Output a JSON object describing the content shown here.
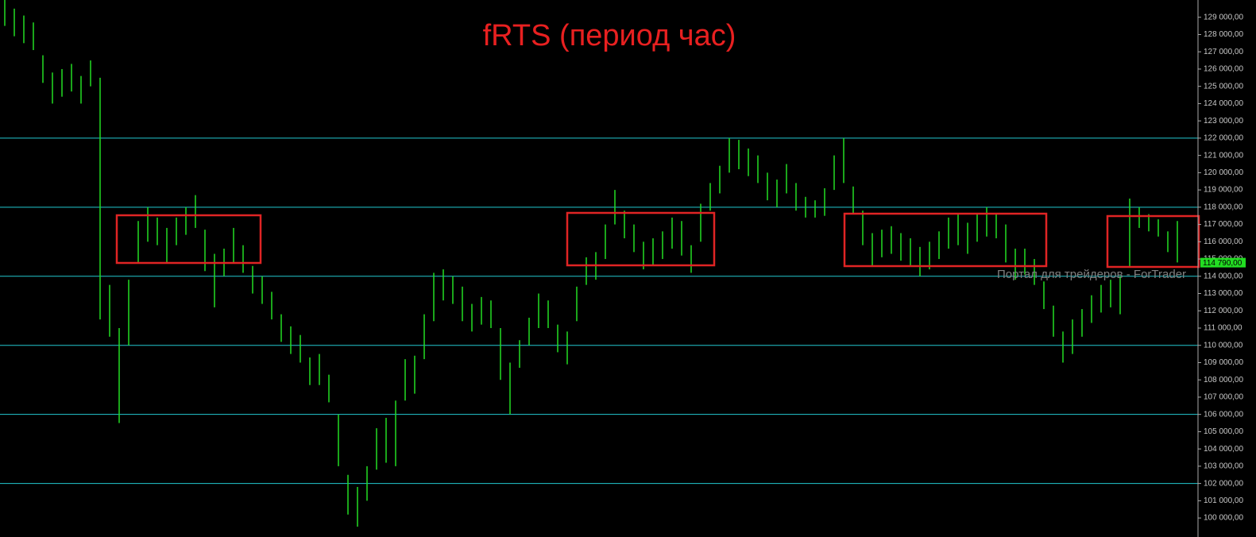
{
  "chart_data": {
    "type": "ohlc",
    "title": "fRTS (период час)",
    "watermark": "Портал для трейдеров - ForTrader",
    "color": "#22dd22",
    "level_color": "#22c8d0",
    "box_color": "#e02424",
    "ylim": [
      98900,
      130000
    ],
    "yticks": [
      {
        "value": 100000,
        "label": "100 000,00"
      },
      {
        "value": 101000,
        "label": "101 000,00"
      },
      {
        "value": 102000,
        "label": "102 000,00"
      },
      {
        "value": 103000,
        "label": "103 000,00"
      },
      {
        "value": 104000,
        "label": "104 000,00"
      },
      {
        "value": 105000,
        "label": "105 000,00"
      },
      {
        "value": 106000,
        "label": "106 000,00"
      },
      {
        "value": 107000,
        "label": "107 000,00"
      },
      {
        "value": 108000,
        "label": "108 000,00"
      },
      {
        "value": 109000,
        "label": "109 000,00"
      },
      {
        "value": 110000,
        "label": "110 000,00"
      },
      {
        "value": 111000,
        "label": "111 000,00"
      },
      {
        "value": 112000,
        "label": "112 000,00"
      },
      {
        "value": 113000,
        "label": "113 000,00"
      },
      {
        "value": 114000,
        "label": "114 000,00"
      },
      {
        "value": 115000,
        "label": "115 000,00"
      },
      {
        "value": 116000,
        "label": "116 000,00"
      },
      {
        "value": 117000,
        "label": "117 000,00"
      },
      {
        "value": 118000,
        "label": "118 000,00"
      },
      {
        "value": 119000,
        "label": "119 000,00"
      },
      {
        "value": 120000,
        "label": "120 000,00"
      },
      {
        "value": 121000,
        "label": "121 000,00"
      },
      {
        "value": 122000,
        "label": "122 000,00"
      },
      {
        "value": 123000,
        "label": "123 000,00"
      },
      {
        "value": 124000,
        "label": "124 000,00"
      },
      {
        "value": 125000,
        "label": "125 000,00"
      },
      {
        "value": 126000,
        "label": "126 000,00"
      },
      {
        "value": 127000,
        "label": "127 000,00"
      },
      {
        "value": 128000,
        "label": "128 000,00"
      },
      {
        "value": 129000,
        "label": "129 000,00"
      }
    ],
    "levels": [
      102000,
      106000,
      110000,
      114000,
      118000,
      122000
    ],
    "last_price": {
      "value": 114790,
      "label": "114 790,00"
    },
    "highs": [
      130000,
      129500,
      129100,
      128700,
      126800,
      125800,
      126000,
      126300,
      125600,
      126500,
      125500,
      113500,
      111000,
      113800,
      117200,
      118000,
      117400,
      116800,
      117400,
      118000,
      118700,
      116700,
      115300,
      115600,
      116800,
      115800,
      114600,
      114000,
      113100,
      111800,
      111100,
      110600,
      109300,
      109500,
      108300,
      106000,
      102500,
      101800,
      103000,
      105200,
      105800,
      106800,
      109200,
      109400,
      111800,
      114200,
      114400,
      114000,
      113400,
      112400,
      112800,
      112600,
      111000,
      109000,
      110300,
      111600,
      113000,
      112600,
      111200,
      110800,
      113400,
      115100,
      115400,
      117000,
      119000,
      117800,
      117000,
      116000,
      116200,
      116600,
      117400,
      117200,
      115800,
      118200,
      119400,
      120400,
      122000,
      121900,
      121400,
      121000,
      120000,
      119600,
      120500,
      119400,
      118600,
      118400,
      119100,
      121000,
      122000,
      119200,
      117800,
      116500,
      116700,
      116900,
      116500,
      116200,
      115700,
      116000,
      116600,
      117400,
      117600,
      117100,
      117600,
      118000,
      117600,
      117000,
      115600,
      115600,
      115000,
      113700,
      112300,
      110800,
      111500,
      112100,
      112900,
      113500,
      113800,
      114000,
      118500,
      118000,
      117600,
      117300,
      116600,
      117200
    ],
    "lows": [
      128500,
      127900,
      127500,
      127100,
      125200,
      124000,
      124400,
      124700,
      124000,
      125000,
      111500,
      110500,
      105500,
      110000,
      114800,
      116000,
      115800,
      114800,
      115800,
      116400,
      116800,
      114300,
      112200,
      114000,
      114800,
      114200,
      113000,
      112400,
      111500,
      110200,
      109500,
      109000,
      107700,
      107700,
      106700,
      103000,
      100200,
      99500,
      101000,
      102800,
      103200,
      103000,
      106800,
      107200,
      109200,
      111400,
      112600,
      112400,
      111400,
      110800,
      111200,
      111000,
      108000,
      106000,
      108700,
      110000,
      111000,
      111000,
      109600,
      108900,
      111400,
      113500,
      113800,
      115000,
      117000,
      116200,
      115400,
      114400,
      114600,
      115000,
      115600,
      115200,
      114200,
      116000,
      117800,
      118800,
      120000,
      120200,
      119800,
      119400,
      118400,
      118000,
      118800,
      117800,
      117400,
      117400,
      117500,
      119000,
      119400,
      117600,
      115800,
      114600,
      115100,
      115300,
      114900,
      114600,
      114000,
      114400,
      115000,
      115600,
      115800,
      115300,
      116000,
      116300,
      116200,
      114800,
      113800,
      114100,
      113500,
      112100,
      110500,
      109000,
      109500,
      110500,
      111300,
      111900,
      112200,
      111800,
      114500,
      116800,
      116600,
      116300,
      115400,
      114800
    ]
  }
}
